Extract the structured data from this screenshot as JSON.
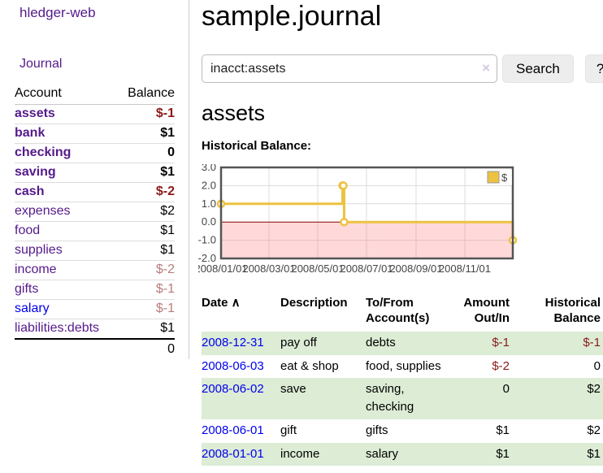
{
  "colors": {
    "link_purple": "#551A8B",
    "link_blue": "#0000EE",
    "negative_strong": "#8b1a1a",
    "negative_light": "#b97c7c",
    "row_stripe_green": "#dcecd5",
    "chart_line_yellow": "#EDC240",
    "chart_negative_fill_pink": "#ffdcdc",
    "chart_zero_line_red": "#8b0000",
    "chart_border_gray": "#545454",
    "button_gray": "#ededed"
  },
  "sidebar": {
    "app_title": "hledger-web",
    "journal_link": "Journal",
    "accounts_header": {
      "account": "Account",
      "balance": "Balance"
    },
    "accounts": [
      {
        "name": "assets",
        "indent": 1,
        "bold": true,
        "balance": "$-1",
        "balance_class": "neg-strong"
      },
      {
        "name": "bank",
        "indent": 2,
        "bold": true,
        "balance": "$1",
        "balance_class": ""
      },
      {
        "name": "checking",
        "indent": 3,
        "bold": true,
        "balance": "0",
        "balance_class": ""
      },
      {
        "name": "saving",
        "indent": 3,
        "bold": true,
        "balance": "$1",
        "balance_class": ""
      },
      {
        "name": "cash",
        "indent": 2,
        "bold": true,
        "balance": "$-2",
        "balance_class": "neg-strong"
      },
      {
        "name": "expenses",
        "indent": 1,
        "bold": false,
        "balance": "$2",
        "balance_class": ""
      },
      {
        "name": "food",
        "indent": 2,
        "bold": false,
        "balance": "$1",
        "balance_class": ""
      },
      {
        "name": "supplies",
        "indent": 2,
        "bold": false,
        "balance": "$1",
        "balance_class": ""
      },
      {
        "name": "income",
        "indent": 1,
        "bold": false,
        "balance": "$-2",
        "balance_class": "neg-light"
      },
      {
        "name": "gifts",
        "indent": 2,
        "bold": false,
        "balance": "$-1",
        "balance_class": "neg-light"
      },
      {
        "name": "salary",
        "indent": 2,
        "bold": false,
        "balance": "$-1",
        "balance_class": "neg-light",
        "link_color": "blue"
      },
      {
        "name": "liabilities:debts",
        "indent": 1,
        "bold": false,
        "balance": "$1",
        "balance_class": ""
      }
    ],
    "total": "0"
  },
  "main": {
    "title": "sample.journal",
    "search": {
      "value": "inacct:assets",
      "clear_icon": "×",
      "button_label": "Search",
      "help_label": "?"
    },
    "account_heading": "assets"
  },
  "chart_data": {
    "type": "line",
    "step": true,
    "title": "Historical Balance:",
    "legend": [
      {
        "label": "$",
        "color": "#EDC240"
      }
    ],
    "legend_position": "top-right",
    "grid": true,
    "negative_region_shaded": true,
    "x_range_days": [
      0,
      365
    ],
    "ylim": [
      -2,
      3
    ],
    "points": [
      {
        "date": "2008-01-01",
        "day": 0,
        "value": 1
      },
      {
        "date": "2008-06-01",
        "day": 152,
        "value": 2
      },
      {
        "date": "2008-06-02",
        "day": 153,
        "value": 2
      },
      {
        "date": "2008-06-03",
        "day": 154,
        "value": 0
      },
      {
        "date": "2008-12-31",
        "day": 365,
        "value": -1
      }
    ],
    "xticks": [
      {
        "day": 0,
        "label": "2008/01/01"
      },
      {
        "day": 60,
        "label": "2008/03/01"
      },
      {
        "day": 121,
        "label": "2008/05/01"
      },
      {
        "day": 182,
        "label": "2008/07/01"
      },
      {
        "day": 244,
        "label": "2008/09/01"
      },
      {
        "day": 305,
        "label": "2008/11/01"
      }
    ],
    "yticks": [
      {
        "value": -2,
        "label": "-2.0"
      },
      {
        "value": -1,
        "label": "-1.0"
      },
      {
        "value": 0,
        "label": "0.0"
      },
      {
        "value": 1,
        "label": "1.0"
      },
      {
        "value": 2,
        "label": "2.0"
      },
      {
        "value": 3,
        "label": "3.0"
      }
    ]
  },
  "register": {
    "sort_icon": "∧",
    "columns": [
      {
        "lines": [
          "Date"
        ],
        "align": "left",
        "sortable": true
      },
      {
        "lines": [
          "Description"
        ],
        "align": "left"
      },
      {
        "lines": [
          "To/From",
          "Account(s)"
        ],
        "align": "left"
      },
      {
        "lines": [
          "Amount",
          "Out/In"
        ],
        "align": "right"
      },
      {
        "lines": [
          "Historical",
          "Balance"
        ],
        "align": "right"
      }
    ],
    "rows": [
      {
        "date": "2008-12-31",
        "description": "pay off",
        "accounts": "debts",
        "amount": "$-1",
        "amount_neg": true,
        "balance": "$-1",
        "balance_neg": true
      },
      {
        "date": "2008-06-03",
        "description": "eat & shop",
        "accounts": "food, supplies",
        "amount": "$-2",
        "amount_neg": true,
        "balance": "0",
        "balance_neg": false
      },
      {
        "date": "2008-06-02",
        "description": "save",
        "accounts": "saving, checking",
        "amount": "0",
        "amount_neg": false,
        "balance": "$2",
        "balance_neg": false
      },
      {
        "date": "2008-06-01",
        "description": "gift",
        "accounts": "gifts",
        "amount": "$1",
        "amount_neg": false,
        "balance": "$2",
        "balance_neg": false
      },
      {
        "date": "2008-01-01",
        "description": "income",
        "accounts": "salary",
        "amount": "$1",
        "amount_neg": false,
        "balance": "$1",
        "balance_neg": false
      }
    ]
  }
}
